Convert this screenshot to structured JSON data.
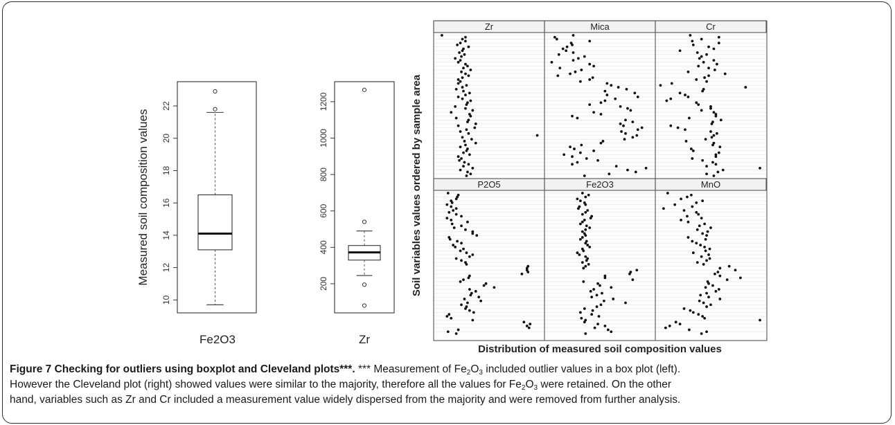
{
  "caption": {
    "title": "Figure 7 Checking for outliers using boxplot and Cleveland plots***.",
    "stars": " ***",
    "t1": " Measurement of Fe",
    "sub": "2",
    "t2": "O",
    "sub2": "3",
    "t3": " included outlier values in a box plot (left).",
    "line2a": "However the Cleveland plot (right) showed values were similar to the majority, therefore all the values for Fe",
    "line2sub": "2",
    "line2b": "O",
    "line2sub2": "3",
    "line2c": " were retained. On the other",
    "line3": "hand, variables such as Zr and Cr included a measurement value widely dispersed from the majority and were removed from further analysis."
  },
  "chart_data": [
    {
      "type": "boxplot",
      "ylabel": "Measured soil composition values",
      "xlabel": "Fe2O3",
      "ylim": [
        9.2,
        23.5
      ],
      "yticks": [
        "10",
        "12",
        "14",
        "16",
        "18",
        "20",
        "22"
      ],
      "box": {
        "whisker_low": 9.7,
        "q1": 13.1,
        "median": 14.1,
        "q3": 16.5,
        "whisker_high": 21.6
      },
      "outliers": [
        21.8,
        22.9
      ]
    },
    {
      "type": "boxplot",
      "xlabel": "Zr",
      "ylim": [
        40,
        1310
      ],
      "yticks": [
        "200",
        "400",
        "600",
        "800",
        "1000",
        "1200"
      ],
      "box": {
        "whisker_low": 245,
        "q1": 330,
        "median": 372,
        "q3": 410,
        "whisker_high": 490
      },
      "outliers": [
        80,
        195,
        540,
        1265
      ]
    },
    {
      "type": "scatter",
      "subtype": "cleveland-dotplot",
      "ylabel": "Soil variables values ordered by sample area",
      "xlabel": "Distribution of measured soil composition values",
      "panels": [
        {
          "name": "Zr",
          "x": [
            0.04,
            0.27,
            0.24,
            0.27,
            0.22,
            0.19,
            0.3,
            0.25,
            0.24,
            0.21,
            0.26,
            0.23,
            0.17,
            0.22,
            0.2,
            0.27,
            0.29,
            0.25,
            0.32,
            0.23,
            0.27,
            0.3,
            0.24,
            0.2,
            0.22,
            0.2,
            0.28,
            0.24,
            0.18,
            0.25,
            0.31,
            0.27,
            0.2,
            0.24,
            0.32,
            0.29,
            0.28,
            0.17,
            0.27,
            0.34,
            0.13,
            0.31,
            0.32,
            0.18,
            0.3,
            0.29,
            0.37,
            0.2,
            0.36,
            0.28,
            0.22,
            0.3,
            0.97,
            0.24,
            0.33,
            0.26,
            0.37,
            0.27,
            0.22,
            0.29,
            0.28,
            0.25,
            0.31,
            0.2,
            0.23,
            0.21,
            0.26,
            0.3,
            0.25,
            0.34,
            0.22,
            0.29,
            0.32,
            0.28
          ]
        },
        {
          "name": "Mica",
          "x": [
            0.24,
            0.06,
            0.08,
            0.4,
            0.22,
            0.23,
            0.18,
            0.14,
            0.17,
            0.24,
            0.1,
            0.35,
            0.29,
            0.24,
            0.03,
            0.4,
            0.44,
            0.11,
            0.32,
            0.26,
            0.21,
            0.09,
            0.43,
            0.4,
            0.31,
            0.57,
            0.61,
            0.68,
            0.76,
            0.55,
            0.84,
            0.57,
            0.87,
            0.65,
            0.55,
            0.51,
            0.4,
            0.7,
            0.77,
            0.8,
            0.44,
            0.51,
            0.23,
            0.28,
            0.75,
            0.82,
            0.7,
            0.73,
            0.91,
            0.87,
            0.71,
            0.75,
            0.86,
            0.82,
            0.74,
            0.53,
            0.51,
            0.32,
            0.21,
            0.25,
            0.44,
            0.31,
            0.15,
            0.23,
            0.37,
            0.48,
            0.28,
            0.23,
            0.66,
            0.95,
            0.77,
            0.85,
            0.59,
            0.35
          ]
        },
        {
          "name": "Cr",
          "x": [
            0.3,
            0.58,
            0.41,
            0.32,
            0.58,
            0.33,
            0.48,
            0.53,
            0.2,
            0.37,
            0.46,
            0.41,
            0.39,
            0.53,
            0.43,
            0.56,
            0.38,
            0.48,
            0.54,
            0.28,
            0.64,
            0.48,
            0.44,
            0.36,
            0.46,
            0.12,
            0.01,
            0.84,
            0.43,
            0.42,
            0.2,
            0.25,
            0.28,
            0.11,
            0.07,
            0.36,
            0.38,
            0.5,
            0.5,
            0.41,
            0.53,
            0.55,
            0.55,
            0.29,
            0.6,
            0.52,
            0.51,
            0.11,
            0.18,
            0.25,
            0.5,
            0.56,
            0.53,
            0.51,
            0.45,
            0.26,
            0.53,
            0.52,
            0.59,
            0.31,
            0.33,
            0.58,
            0.55,
            0.55,
            0.32,
            0.42,
            0.52,
            0.55,
            0.46,
            0.98,
            0.62,
            0.57,
            0.46,
            0.53
          ]
        },
        {
          "name": "P2O5",
          "x": [
            0.1,
            0.2,
            0.19,
            0.18,
            0.13,
            0.14,
            0.09,
            0.13,
            0.18,
            0.15,
            0.11,
            0.18,
            0.23,
            0.09,
            0.13,
            0.29,
            0.14,
            0.23,
            0.16,
            0.27,
            0.34,
            0.34,
            0.38,
            0.11,
            0.12,
            0.19,
            0.23,
            0.15,
            0.17,
            0.25,
            0.22,
            0.28,
            0.34,
            0.31,
            0.18,
            0.23,
            0.27,
            0.28,
            0.88,
            0.87,
            0.87,
            0.88,
            0.82,
            0.31,
            0.3,
            0.25,
            0.22,
            0.47,
            0.45,
            0.55,
            0.31,
            0.37,
            0.33,
            0.32,
            0.4,
            0.26,
            0.42,
            0.29,
            0.23,
            0.28,
            0.27,
            0.31,
            0.35,
            0.11,
            0.09,
            0.13,
            0.34,
            0.84,
            0.9,
            0.87,
            0.89,
            0.2,
            0.1,
            0.18
          ]
        },
        {
          "name": "Fe2O3",
          "x": [
            0.33,
            0.39,
            0.36,
            0.28,
            0.31,
            0.35,
            0.36,
            0.3,
            0.29,
            0.38,
            0.36,
            0.33,
            0.42,
            0.41,
            0.35,
            0.33,
            0.31,
            0.37,
            0.4,
            0.36,
            0.33,
            0.35,
            0.36,
            0.33,
            0.31,
            0.37,
            0.36,
            0.38,
            0.4,
            0.33,
            0.34,
            0.28,
            0.3,
            0.36,
            0.38,
            0.37,
            0.33,
            0.39,
            0.36,
            0.34,
            0.86,
            0.8,
            0.79,
            0.55,
            0.55,
            0.82,
            0.34,
            0.48,
            0.5,
            0.61,
            0.44,
            0.41,
            0.52,
            0.47,
            0.42,
            0.63,
            0.54,
            0.75,
            0.51,
            0.47,
            0.35,
            0.43,
            0.31,
            0.42,
            0.49,
            0.32,
            0.36,
            0.35,
            0.48,
            0.55,
            0.45,
            0.58,
            0.61,
            0.36
          ]
        },
        {
          "name": "MnO",
          "x": [
            0.08,
            0.31,
            0.27,
            0.21,
            0.42,
            0.36,
            0.15,
            0.32,
            0.04,
            0.24,
            0.36,
            0.38,
            0.27,
            0.41,
            0.21,
            0.28,
            0.44,
            0.39,
            0.5,
            0.37,
            0.47,
            0.42,
            0.46,
            0.28,
            0.45,
            0.32,
            0.36,
            0.4,
            0.44,
            0.49,
            0.45,
            0.33,
            0.48,
            0.41,
            0.49,
            0.46,
            0.37,
            0.43,
            0.68,
            0.59,
            0.74,
            0.57,
            0.54,
            0.59,
            0.79,
            0.66,
            0.47,
            0.48,
            0.52,
            0.45,
            0.58,
            0.55,
            0.46,
            0.4,
            0.48,
            0.59,
            0.39,
            0.43,
            0.5,
            0.46,
            0.24,
            0.3,
            0.33,
            0.38,
            0.42,
            0.44,
            0.98,
            0.16,
            0.2,
            0.1,
            0.06,
            0.29,
            0.46,
            0.41
          ]
        }
      ]
    }
  ]
}
